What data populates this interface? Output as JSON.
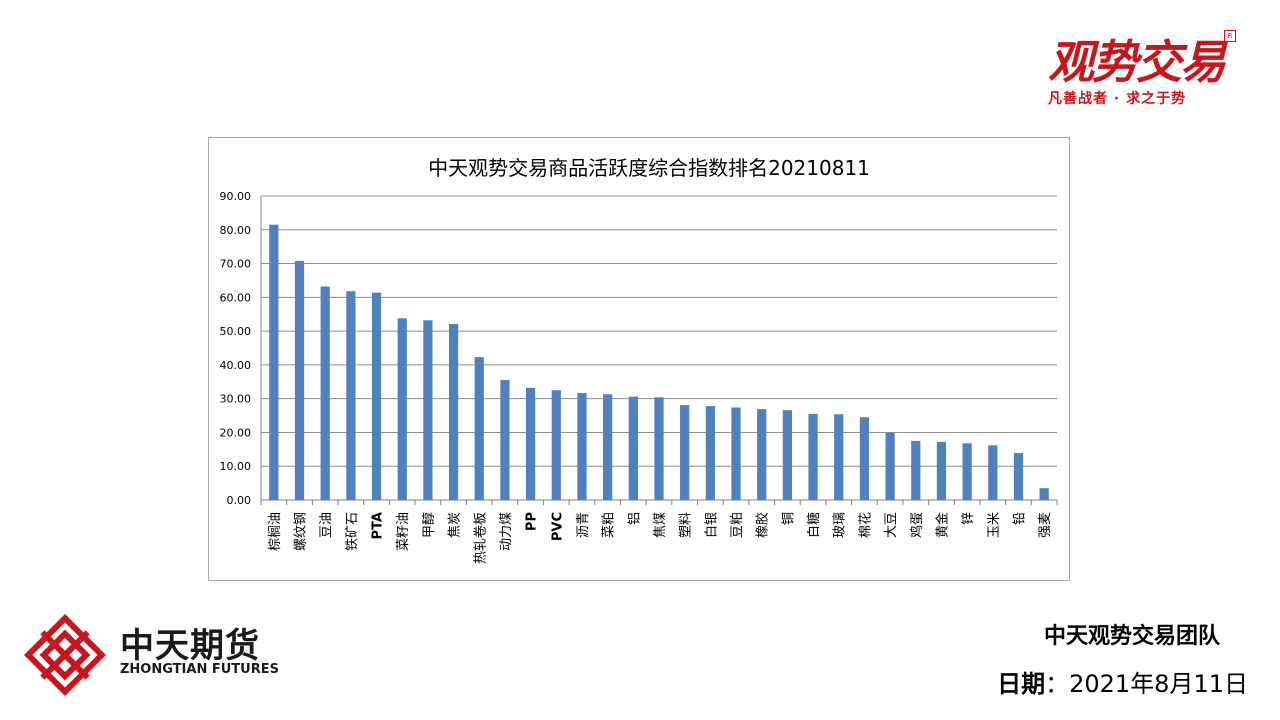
{
  "header": {
    "brand_text": "观势交易",
    "registered_mark": "R",
    "slogan": "凡善战者 · 求之于势"
  },
  "chart_data": {
    "type": "bar",
    "title": "中天观势交易商品活跃度综合指数排名20210811",
    "xlabel": "",
    "ylabel": "",
    "ylim": [
      0,
      90
    ],
    "yticks": [
      "0.00",
      "10.00",
      "20.00",
      "30.00",
      "40.00",
      "50.00",
      "60.00",
      "70.00",
      "80.00",
      "90.00"
    ],
    "grid": true,
    "bar_color": "#4f81bd",
    "categories": [
      "棕榈油",
      "螺纹钢",
      "豆油",
      "铁矿石",
      "PTA",
      "菜籽油",
      "甲醇",
      "焦炭",
      "热轧卷板",
      "动力煤",
      "PP",
      "PVC",
      "沥青",
      "菜粕",
      "铝",
      "焦煤",
      "塑料",
      "白银",
      "豆粕",
      "橡胶",
      "铜",
      "白糖",
      "玻璃",
      "棉花",
      "大豆",
      "鸡蛋",
      "黄金",
      "锌",
      "玉米",
      "铅",
      "强麦"
    ],
    "values": [
      81.5,
      70.8,
      63.2,
      61.8,
      61.4,
      53.8,
      53.2,
      52.1,
      42.3,
      35.5,
      33.2,
      32.5,
      31.7,
      31.3,
      30.6,
      30.4,
      28.1,
      27.8,
      27.4,
      26.9,
      26.6,
      25.5,
      25.4,
      24.5,
      19.9,
      17.5,
      17.2,
      16.8,
      16.2,
      13.9,
      3.5
    ]
  },
  "footer": {
    "company_cn": "中天期货",
    "company_en": "ZHONGTIAN FUTURES",
    "team": "中天观势交易团队",
    "date_label": "日期",
    "date_sep": "：",
    "date_value": "2021年8月11日"
  }
}
